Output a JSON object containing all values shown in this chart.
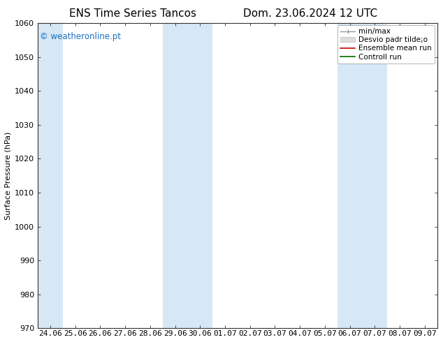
{
  "title_left": "ENS Time Series Tancos",
  "title_right": "Dom. 23.06.2024 12 UTC",
  "ylabel": "Surface Pressure (hPa)",
  "ylim": [
    970,
    1060
  ],
  "yticks": [
    970,
    980,
    990,
    1000,
    1010,
    1020,
    1030,
    1040,
    1050,
    1060
  ],
  "x_labels": [
    "24.06",
    "25.06",
    "26.06",
    "27.06",
    "28.06",
    "29.06",
    "30.06",
    "01.07",
    "02.07",
    "03.07",
    "04.07",
    "05.07",
    "06.07",
    "07.07",
    "08.07",
    "09.07"
  ],
  "shaded_cols": [
    0,
    5,
    6,
    12,
    13
  ],
  "shade_color": "#d6e8f5",
  "background_color": "#ffffff",
  "watermark": "© weatheronline.pt",
  "watermark_color": "#1a6bbf",
  "title_fontsize": 11,
  "axis_label_fontsize": 8,
  "tick_fontsize": 8,
  "legend_fontsize": 7.5
}
